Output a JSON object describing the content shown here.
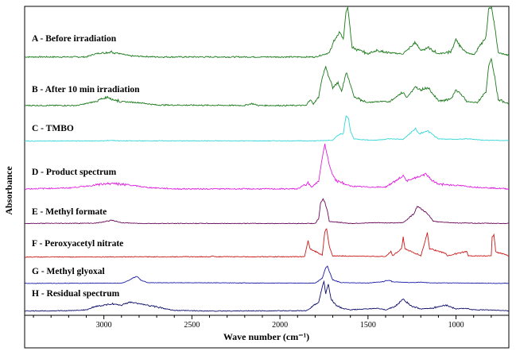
{
  "chart_data": {
    "type": "line",
    "title": "",
    "xlabel": "Wave number (cm⁻¹)",
    "ylabel": "Absorbance",
    "xlim": [
      3450,
      700
    ],
    "x_reversed": true,
    "x_ticks": [
      3000,
      2500,
      2000,
      1500,
      1000
    ],
    "grid": false,
    "series": [
      {
        "name": "A - Before irradiation",
        "color": "#1a7a1a",
        "points": [
          [
            3450,
            0.02
          ],
          [
            3100,
            0.02
          ],
          [
            3050,
            0.08
          ],
          [
            2960,
            0.12
          ],
          [
            2920,
            0.09
          ],
          [
            2850,
            0.04
          ],
          [
            2700,
            0.02
          ],
          [
            1800,
            0.02
          ],
          [
            1720,
            0.1
          ],
          [
            1690,
            0.35
          ],
          [
            1660,
            0.5
          ],
          [
            1640,
            0.35
          ],
          [
            1625,
            0.9
          ],
          [
            1615,
            1.0
          ],
          [
            1605,
            0.7
          ],
          [
            1590,
            0.2
          ],
          [
            1500,
            0.08
          ],
          [
            1450,
            0.15
          ],
          [
            1380,
            0.1
          ],
          [
            1300,
            0.08
          ],
          [
            1230,
            0.3
          ],
          [
            1200,
            0.15
          ],
          [
            1160,
            0.2
          ],
          [
            1100,
            0.08
          ],
          [
            1030,
            0.12
          ],
          [
            1000,
            0.35
          ],
          [
            980,
            0.25
          ],
          [
            940,
            0.1
          ],
          [
            900,
            0.06
          ],
          [
            830,
            0.4
          ],
          [
            815,
            0.95
          ],
          [
            800,
            1.0
          ],
          [
            780,
            0.6
          ],
          [
            760,
            0.1
          ],
          [
            700,
            0.05
          ]
        ]
      },
      {
        "name": "B - After 10 min irradiation",
        "color": "#1a7a1a",
        "points": [
          [
            3450,
            0.02
          ],
          [
            3150,
            0.02
          ],
          [
            3050,
            0.1
          ],
          [
            2980,
            0.2
          ],
          [
            2950,
            0.15
          ],
          [
            2900,
            0.1
          ],
          [
            2800,
            0.08
          ],
          [
            2700,
            0.03
          ],
          [
            2200,
            0.02
          ],
          [
            2160,
            0.06
          ],
          [
            2120,
            0.02
          ],
          [
            1850,
            0.02
          ],
          [
            1830,
            0.15
          ],
          [
            1810,
            0.05
          ],
          [
            1780,
            0.2
          ],
          [
            1760,
            0.6
          ],
          [
            1740,
            0.85
          ],
          [
            1730,
            0.7
          ],
          [
            1700,
            0.4
          ],
          [
            1670,
            0.5
          ],
          [
            1650,
            0.3
          ],
          [
            1625,
            0.7
          ],
          [
            1610,
            0.6
          ],
          [
            1580,
            0.2
          ],
          [
            1500,
            0.08
          ],
          [
            1450,
            0.1
          ],
          [
            1380,
            0.1
          ],
          [
            1300,
            0.3
          ],
          [
            1280,
            0.2
          ],
          [
            1230,
            0.4
          ],
          [
            1200,
            0.35
          ],
          [
            1160,
            0.4
          ],
          [
            1100,
            0.12
          ],
          [
            1030,
            0.15
          ],
          [
            1000,
            0.35
          ],
          [
            970,
            0.25
          ],
          [
            940,
            0.1
          ],
          [
            880,
            0.08
          ],
          [
            830,
            0.3
          ],
          [
            815,
            0.85
          ],
          [
            800,
            1.0
          ],
          [
            780,
            0.6
          ],
          [
            760,
            0.15
          ],
          [
            700,
            0.05
          ]
        ]
      },
      {
        "name": "C - TMBO",
        "color": "#33d6d6",
        "points": [
          [
            3450,
            0.01
          ],
          [
            3000,
            0.02
          ],
          [
            2960,
            0.04
          ],
          [
            2900,
            0.02
          ],
          [
            1800,
            0.02
          ],
          [
            1700,
            0.05
          ],
          [
            1670,
            0.25
          ],
          [
            1640,
            0.3
          ],
          [
            1625,
            1.0
          ],
          [
            1610,
            0.9
          ],
          [
            1600,
            0.4
          ],
          [
            1580,
            0.1
          ],
          [
            1500,
            0.05
          ],
          [
            1450,
            0.05
          ],
          [
            1380,
            0.1
          ],
          [
            1300,
            0.08
          ],
          [
            1230,
            0.5
          ],
          [
            1210,
            0.3
          ],
          [
            1160,
            0.4
          ],
          [
            1140,
            0.3
          ],
          [
            1100,
            0.1
          ],
          [
            1000,
            0.08
          ],
          [
            930,
            0.1
          ],
          [
            850,
            0.05
          ],
          [
            700,
            0.03
          ]
        ]
      },
      {
        "name": "D - Product spectrum",
        "color": "#e020e0",
        "points": [
          [
            3450,
            0.02
          ],
          [
            3200,
            0.04
          ],
          [
            3100,
            0.08
          ],
          [
            3000,
            0.12
          ],
          [
            2950,
            0.15
          ],
          [
            2900,
            0.12
          ],
          [
            2850,
            0.1
          ],
          [
            2750,
            0.05
          ],
          [
            2600,
            0.02
          ],
          [
            1900,
            0.02
          ],
          [
            1840,
            0.15
          ],
          [
            1820,
            0.05
          ],
          [
            1780,
            0.2
          ],
          [
            1760,
            0.7
          ],
          [
            1745,
            1.0
          ],
          [
            1735,
            0.8
          ],
          [
            1710,
            0.4
          ],
          [
            1680,
            0.2
          ],
          [
            1600,
            0.08
          ],
          [
            1500,
            0.06
          ],
          [
            1400,
            0.06
          ],
          [
            1300,
            0.3
          ],
          [
            1280,
            0.2
          ],
          [
            1230,
            0.25
          ],
          [
            1200,
            0.3
          ],
          [
            1170,
            0.35
          ],
          [
            1150,
            0.25
          ],
          [
            1100,
            0.12
          ],
          [
            1000,
            0.1
          ],
          [
            900,
            0.06
          ],
          [
            800,
            0.04
          ],
          [
            700,
            0.02
          ]
        ]
      },
      {
        "name": "E - Methyl formate",
        "color": "#6a0a5a",
        "points": [
          [
            3450,
            0.02
          ],
          [
            3050,
            0.03
          ],
          [
            3000,
            0.08
          ],
          [
            2960,
            0.15
          ],
          [
            2930,
            0.1
          ],
          [
            2900,
            0.05
          ],
          [
            2800,
            0.02
          ],
          [
            1800,
            0.02
          ],
          [
            1780,
            0.2
          ],
          [
            1770,
            0.8
          ],
          [
            1755,
            1.0
          ],
          [
            1745,
            0.85
          ],
          [
            1730,
            0.5
          ],
          [
            1720,
            0.1
          ],
          [
            1600,
            0.02
          ],
          [
            1450,
            0.05
          ],
          [
            1380,
            0.04
          ],
          [
            1300,
            0.05
          ],
          [
            1240,
            0.4
          ],
          [
            1220,
            0.7
          ],
          [
            1200,
            0.6
          ],
          [
            1180,
            0.5
          ],
          [
            1160,
            0.4
          ],
          [
            1130,
            0.1
          ],
          [
            1000,
            0.04
          ],
          [
            900,
            0.03
          ],
          [
            700,
            0.02
          ]
        ]
      },
      {
        "name": "F - Peroxyacetyl nitrate",
        "color": "#cc1a1a",
        "points": [
          [
            3450,
            0.01
          ],
          [
            2400,
            0.02
          ],
          [
            2380,
            0.04
          ],
          [
            2360,
            0.02
          ],
          [
            1860,
            0.02
          ],
          [
            1840,
            0.6
          ],
          [
            1830,
            0.3
          ],
          [
            1760,
            0.08
          ],
          [
            1745,
            0.9
          ],
          [
            1735,
            1.0
          ],
          [
            1720,
            0.4
          ],
          [
            1700,
            0.05
          ],
          [
            1400,
            0.03
          ],
          [
            1370,
            0.2
          ],
          [
            1360,
            0.05
          ],
          [
            1310,
            0.3
          ],
          [
            1300,
            0.7
          ],
          [
            1290,
            0.3
          ],
          [
            1200,
            0.05
          ],
          [
            1163,
            0.85
          ],
          [
            1150,
            0.3
          ],
          [
            1060,
            0.15
          ],
          [
            1050,
            0.05
          ],
          [
            940,
            0.2
          ],
          [
            930,
            0.05
          ],
          [
            800,
            0.05
          ],
          [
            795,
            0.7
          ],
          [
            785,
            0.8
          ],
          [
            775,
            0.2
          ],
          [
            700,
            0.05
          ]
        ]
      },
      {
        "name": "G - Methyl glyoxal",
        "color": "#1a1aa8",
        "points": [
          [
            3450,
            0.01
          ],
          [
            2900,
            0.02
          ],
          [
            2850,
            0.2
          ],
          [
            2830,
            0.35
          ],
          [
            2810,
            0.4
          ],
          [
            2790,
            0.2
          ],
          [
            2750,
            0.05
          ],
          [
            1800,
            0.02
          ],
          [
            1760,
            0.3
          ],
          [
            1740,
            0.9
          ],
          [
            1730,
            1.0
          ],
          [
            1720,
            0.7
          ],
          [
            1700,
            0.2
          ],
          [
            1650,
            0.05
          ],
          [
            1500,
            0.03
          ],
          [
            1420,
            0.1
          ],
          [
            1380,
            0.2
          ],
          [
            1360,
            0.1
          ],
          [
            1250,
            0.05
          ],
          [
            1200,
            0.08
          ],
          [
            1150,
            0.04
          ],
          [
            1000,
            0.03
          ],
          [
            900,
            0.02
          ],
          [
            700,
            0.01
          ]
        ]
      },
      {
        "name": "H - Residual spectrum",
        "color": "#0d0d6a",
        "points": [
          [
            3450,
            0.01
          ],
          [
            3200,
            0.02
          ],
          [
            3100,
            0.05
          ],
          [
            3050,
            0.15
          ],
          [
            3000,
            0.2
          ],
          [
            2950,
            0.25
          ],
          [
            2900,
            0.2
          ],
          [
            2850,
            0.3
          ],
          [
            2800,
            0.25
          ],
          [
            2750,
            0.2
          ],
          [
            2700,
            0.15
          ],
          [
            2650,
            0.08
          ],
          [
            2600,
            0.03
          ],
          [
            2400,
            0.01
          ],
          [
            1850,
            0.02
          ],
          [
            1780,
            0.3
          ],
          [
            1760,
            0.8
          ],
          [
            1750,
            1.0
          ],
          [
            1740,
            0.6
          ],
          [
            1725,
            0.9
          ],
          [
            1710,
            0.4
          ],
          [
            1680,
            0.2
          ],
          [
            1650,
            0.1
          ],
          [
            1600,
            0.05
          ],
          [
            1500,
            0.08
          ],
          [
            1450,
            0.1
          ],
          [
            1400,
            0.05
          ],
          [
            1350,
            0.15
          ],
          [
            1300,
            0.4
          ],
          [
            1280,
            0.3
          ],
          [
            1250,
            0.15
          ],
          [
            1200,
            0.08
          ],
          [
            1150,
            0.1
          ],
          [
            1100,
            0.15
          ],
          [
            1050,
            0.2
          ],
          [
            1000,
            0.08
          ],
          [
            950,
            0.1
          ],
          [
            900,
            0.05
          ],
          [
            850,
            0.05
          ],
          [
            800,
            0.04
          ],
          [
            750,
            0.03
          ],
          [
            700,
            0.02
          ]
        ]
      }
    ]
  }
}
